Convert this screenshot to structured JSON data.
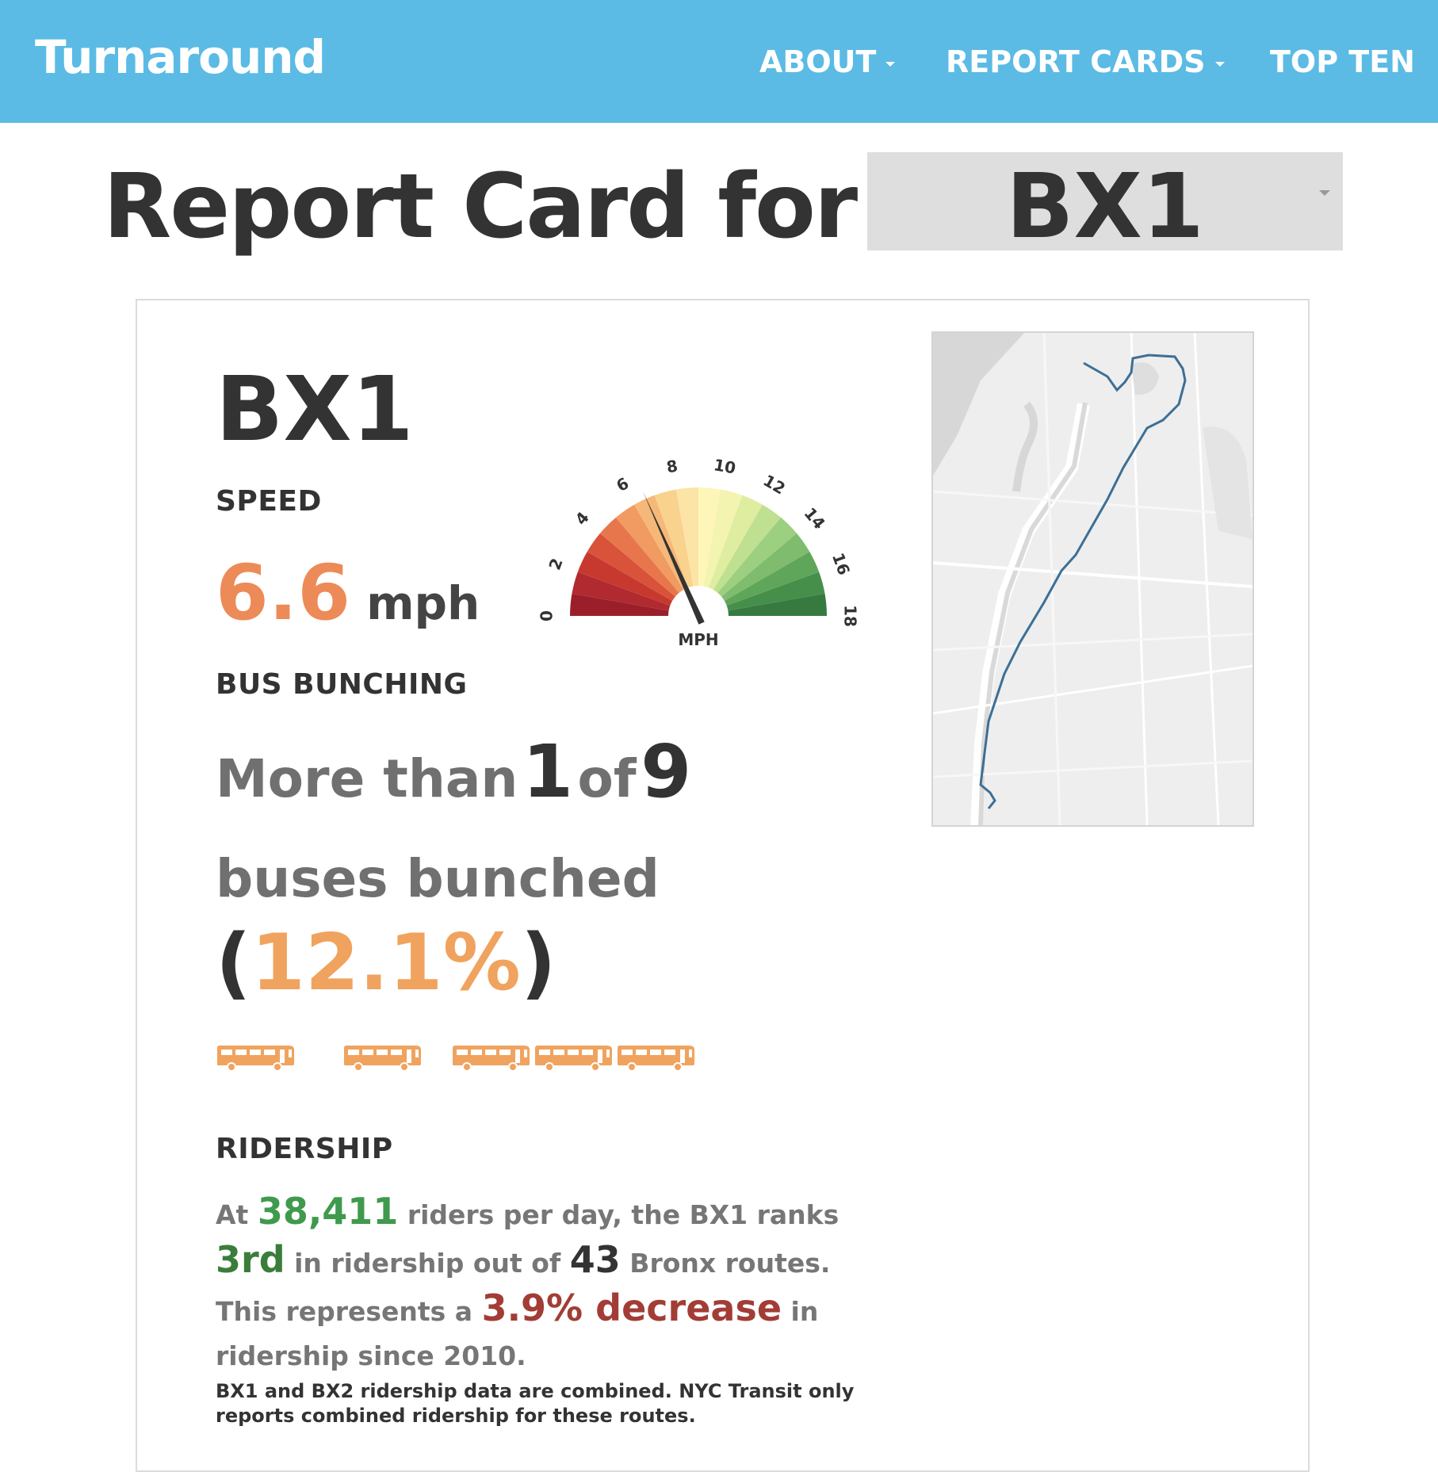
{
  "nav": {
    "brand": "Turnaround",
    "items": [
      {
        "label": "ABOUT",
        "dropdown": true
      },
      {
        "label": "REPORT CARDS",
        "dropdown": true
      },
      {
        "label": "TOP TEN",
        "dropdown": false
      }
    ]
  },
  "header": {
    "title": "Report Card for",
    "selected_route": "BX1"
  },
  "card": {
    "route": "BX1",
    "speed": {
      "label": "SPEED",
      "value": "6.6",
      "unit": "mph",
      "gauge": {
        "min": 0,
        "max": 18,
        "value": 6.6,
        "ticks": [
          "0",
          "2",
          "4",
          "6",
          "8",
          "10",
          "12",
          "14",
          "16",
          "18"
        ],
        "unit_label": "MPH"
      }
    },
    "bunching": {
      "label": "BUS BUNCHING",
      "prefix": "More than",
      "numerator": "1",
      "of": "of",
      "denominator": "9",
      "suffix": "buses bunched",
      "paren_open": "(",
      "percent": "12.1%",
      "paren_close": ")"
    },
    "ridership": {
      "label": "RIDERSHIP",
      "t1": "At ",
      "riders": "38,411",
      "t2": " riders per day, the BX1 ranks ",
      "rank": "3rd",
      "t3": " in ridership out of ",
      "total_routes": "43",
      "t4": " Bronx routes. This represents a ",
      "change": "3.9% decrease",
      "t5": " in ridership since 2010.",
      "note": "BX1 and BX2 ridership data are combined. NYC Transit only reports combined ridership for these routes."
    }
  },
  "colors": {
    "navbar": "#5bbbe4",
    "speed": "#ec8b57",
    "bunch_pct": "#f0a35e",
    "riders": "#3f9a4d",
    "decrease": "#a23d36",
    "route_line": "#3d6f95"
  },
  "icons": {
    "bus": "bus-icon",
    "caret": "caret-down-icon"
  }
}
